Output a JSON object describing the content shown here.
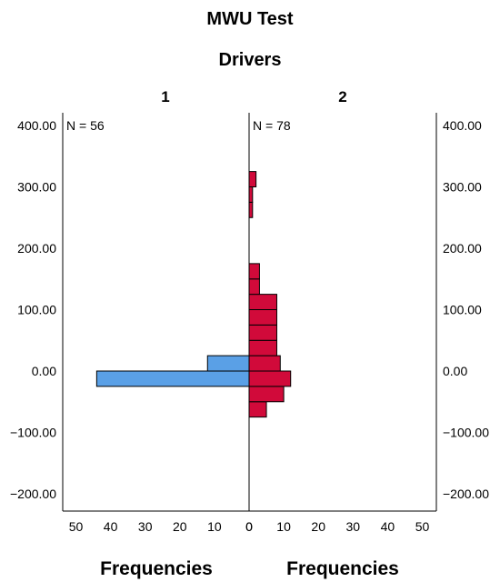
{
  "chart_data": {
    "type": "bar",
    "orientation": "horizontal-back-to-back",
    "title": "MWU Test",
    "subtitle": "Drivers",
    "xlabel_left": "Frequencies",
    "xlabel_right": "Frequencies",
    "ylim": [
      -220,
      420
    ],
    "yticks": [
      "400.00",
      "300.00",
      "200.00",
      "100.00",
      "0.00",
      "−100.00",
      "−200.00"
    ],
    "ytick_values": [
      400,
      300,
      200,
      100,
      0,
      -100,
      -200
    ],
    "xticks_left": [
      "50",
      "40",
      "30",
      "20",
      "10",
      "0"
    ],
    "xticks_right": [
      "0",
      "10",
      "20",
      "30",
      "40",
      "50"
    ],
    "xtick_values": [
      50,
      40,
      30,
      20,
      10,
      0
    ],
    "xlim": [
      0,
      53
    ],
    "bin_width": 25,
    "groups": [
      {
        "name": "1",
        "n_label": "N = 56",
        "color": "#5aa0e6",
        "bins": [
          {
            "start": -25,
            "end": 0,
            "count": 44
          },
          {
            "start": 0,
            "end": 25,
            "count": 12
          }
        ]
      },
      {
        "name": "2",
        "n_label": "N = 78",
        "color": "#d10a3a",
        "bins": [
          {
            "start": -75,
            "end": -50,
            "count": 5
          },
          {
            "start": -50,
            "end": -25,
            "count": 10
          },
          {
            "start": -25,
            "end": 0,
            "count": 12
          },
          {
            "start": 0,
            "end": 25,
            "count": 9
          },
          {
            "start": 25,
            "end": 50,
            "count": 8
          },
          {
            "start": 50,
            "end": 75,
            "count": 8
          },
          {
            "start": 75,
            "end": 100,
            "count": 8
          },
          {
            "start": 100,
            "end": 125,
            "count": 8
          },
          {
            "start": 125,
            "end": 150,
            "count": 3
          },
          {
            "start": 150,
            "end": 175,
            "count": 3
          },
          {
            "start": 250,
            "end": 275,
            "count": 1
          },
          {
            "start": 275,
            "end": 300,
            "count": 1
          },
          {
            "start": 300,
            "end": 325,
            "count": 2
          }
        ]
      }
    ],
    "grid": false
  }
}
